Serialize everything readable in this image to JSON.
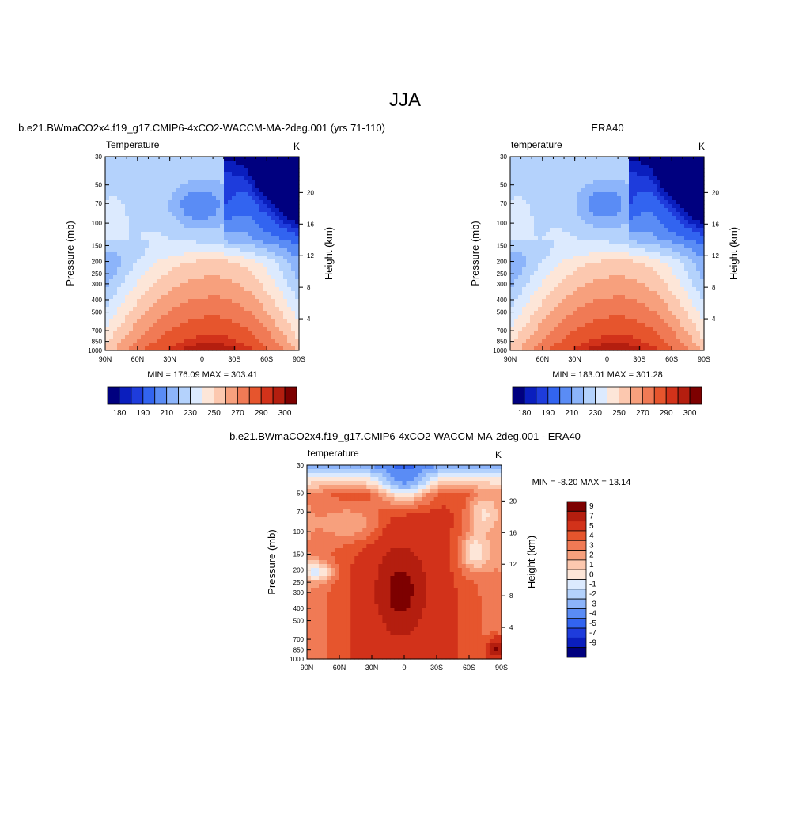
{
  "page": {
    "title": "JJA"
  },
  "colors": {
    "model_scale": [
      "#00007f",
      "#0a1ebe",
      "#1e3cdc",
      "#3264f0",
      "#5a8cf5",
      "#8cb4fa",
      "#b4d2fc",
      "#dceafe",
      "#fde6d8",
      "#fcc8af",
      "#f7a07d",
      "#f07a55",
      "#e6552d",
      "#d2321a",
      "#b41e0f",
      "#7d0000"
    ],
    "diff_scale": [
      "#00007f",
      "#0a1ebe",
      "#1e3cdc",
      "#3264f0",
      "#5a8cf5",
      "#8cb4fa",
      "#b4d2fc",
      "#dceafe",
      "#fde6d8",
      "#fcc8af",
      "#f7a07d",
      "#f07a55",
      "#e6552d",
      "#d2321a",
      "#b41e0f",
      "#7d0000"
    ]
  },
  "chart_data": [
    {
      "type": "heatmap",
      "id": "model",
      "title": "b.e21.BWmaCO2x4.f19_g17.CMIP6-4xCO2-WACCM-MA-2deg.001 (yrs 71-110)",
      "left_label": "Temperature",
      "right_label": "K",
      "ylabel": "Pressure (mb)",
      "y2label": "Height (km)",
      "x_ticks": [
        "90N",
        "60N",
        "30N",
        "0",
        "30S",
        "60S",
        "90S"
      ],
      "x_values": [
        90,
        60,
        30,
        0,
        -30,
        -60,
        -90
      ],
      "y_ticks": [
        30,
        50,
        70,
        100,
        150,
        200,
        250,
        300,
        400,
        500,
        700,
        850,
        1000
      ],
      "y2_ticks": [
        4,
        8,
        12,
        16,
        20
      ],
      "ylim": [
        1000,
        30
      ],
      "xlim": [
        90,
        -90
      ],
      "minmax": "MIN = 176.09  MAX = 303.41",
      "min": 176.09,
      "max": 303.41,
      "colorbar_labels": [
        "180",
        "190",
        "210",
        "230",
        "250",
        "270",
        "290",
        "300"
      ],
      "colorbar_levels": [
        180,
        185,
        190,
        200,
        210,
        220,
        230,
        240,
        250,
        260,
        270,
        280,
        290,
        295,
        300
      ]
    },
    {
      "type": "heatmap",
      "id": "obs",
      "title": "ERA40",
      "left_label": "temperature",
      "right_label": "K",
      "ylabel": "Pressure (mb)",
      "y2label": "Height (km)",
      "x_ticks": [
        "90N",
        "60N",
        "30N",
        "0",
        "30S",
        "60S",
        "90S"
      ],
      "x_values": [
        90,
        60,
        30,
        0,
        -30,
        -60,
        -90
      ],
      "y_ticks": [
        30,
        50,
        70,
        100,
        150,
        200,
        250,
        300,
        400,
        500,
        700,
        850,
        1000
      ],
      "y2_ticks": [
        4,
        8,
        12,
        16,
        20
      ],
      "ylim": [
        1000,
        30
      ],
      "xlim": [
        90,
        -90
      ],
      "minmax": "MIN = 183.01  MAX = 301.28",
      "min": 183.01,
      "max": 301.28,
      "colorbar_labels": [
        "180",
        "190",
        "210",
        "230",
        "250",
        "270",
        "290",
        "300"
      ],
      "colorbar_levels": [
        180,
        185,
        190,
        200,
        210,
        220,
        230,
        240,
        250,
        260,
        270,
        280,
        290,
        295,
        300
      ]
    },
    {
      "type": "heatmap",
      "id": "diff",
      "title": "b.e21.BWmaCO2x4.f19_g17.CMIP6-4xCO2-WACCM-MA-2deg.001 - ERA40",
      "left_label": "temperature",
      "right_label": "K",
      "ylabel": "Pressure (mb)",
      "y2label": "Height (km)",
      "x_ticks": [
        "90N",
        "60N",
        "30N",
        "0",
        "30S",
        "60S",
        "90S"
      ],
      "x_values": [
        90,
        60,
        30,
        0,
        -30,
        -60,
        -90
      ],
      "y_ticks": [
        30,
        50,
        70,
        100,
        150,
        200,
        250,
        300,
        400,
        500,
        700,
        850,
        1000
      ],
      "y2_ticks": [
        4,
        8,
        12,
        16,
        20
      ],
      "ylim": [
        1000,
        30
      ],
      "xlim": [
        90,
        -90
      ],
      "minmax": "MIN =  -8.20  MAX =  13.14",
      "min": -8.2,
      "max": 13.14,
      "colorbar_labels": [
        "9",
        "7",
        "5",
        "4",
        "3",
        "2",
        "1",
        "0",
        "-1",
        "-2",
        "-3",
        "-4",
        "-5",
        "-7",
        "-9"
      ],
      "colorbar_levels": [
        9,
        7,
        5,
        4,
        3,
        2,
        1,
        0,
        -1,
        -2,
        -3,
        -4,
        -5,
        -7,
        -9
      ]
    }
  ]
}
